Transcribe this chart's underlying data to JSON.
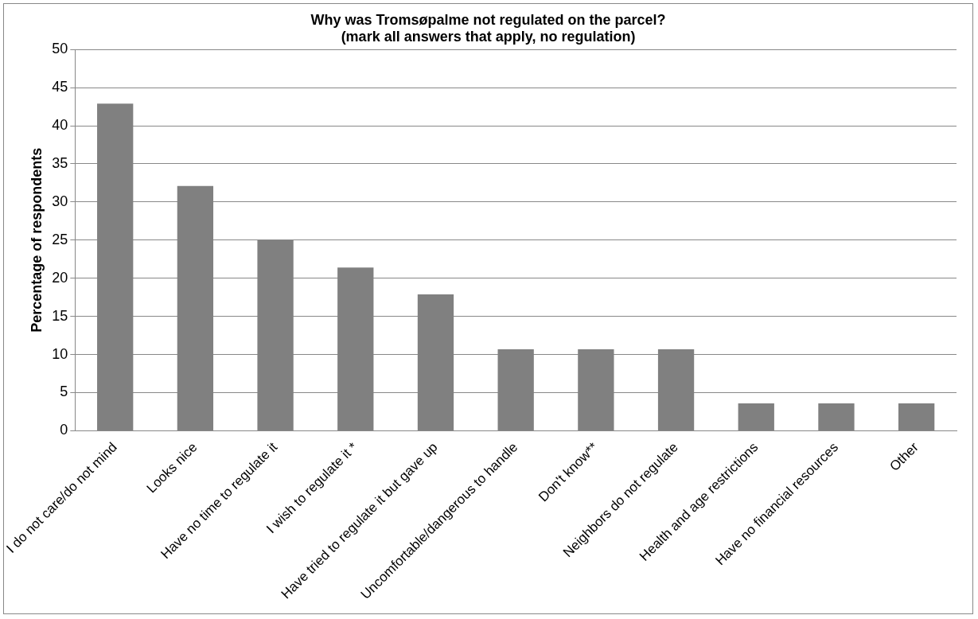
{
  "chart_data": {
    "type": "bar",
    "title": "Why was Tromsøpalme not regulated on the parcel?\n(mark all answers that apply, no regulation)",
    "ylabel": "Percentage of respondents",
    "categories": [
      "I do not care/do not mind",
      "Looks nice",
      "Have no time to regulate it",
      "I wish to regulate it *",
      "Have tried to regulate it but gave up",
      "Uncomfortable/dangerous to handle",
      "Don't know**",
      "Neighbors do not regulate",
      "Health and age restrictions",
      "Have no financial resources",
      "Other"
    ],
    "values": [
      42.9,
      32.1,
      25,
      21.4,
      17.9,
      10.7,
      10.7,
      10.7,
      3.6,
      3.6,
      3.6
    ],
    "color": "#808080",
    "ylim": [
      0,
      50
    ],
    "yticks": [
      0,
      5,
      10,
      15,
      20,
      25,
      30,
      35,
      40,
      45,
      50
    ],
    "grid": "y",
    "legend": false
  }
}
